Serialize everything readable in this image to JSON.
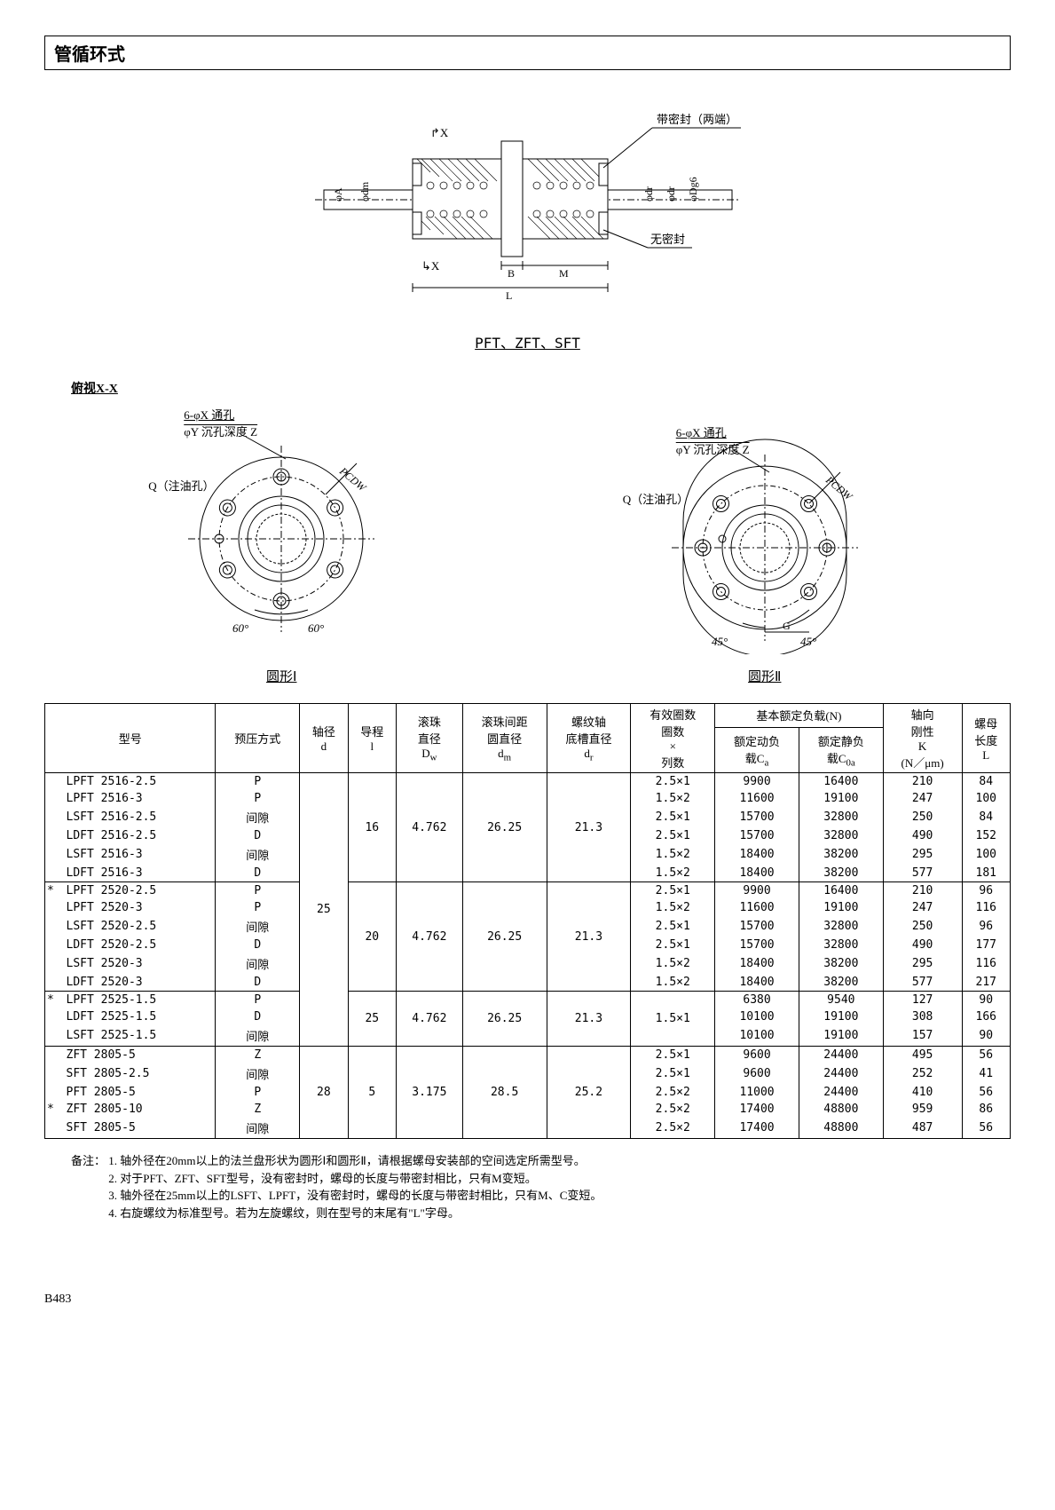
{
  "title": "管循环式",
  "main_diagram": {
    "seal_label": "带密封（两端）",
    "noseal_label": "无密封",
    "dims": [
      "φA",
      "φdm",
      "X",
      "X",
      "B",
      "M",
      "L",
      "φdr",
      "φdr",
      "φDg6"
    ],
    "caption": "PFT、ZFT、SFT"
  },
  "section_xx": "俯视X-X",
  "flange1": {
    "hole_label": "6-φX 通孔",
    "cbore_label": "φY 沉孔深度 Z",
    "oil_label": "Q（注油孔）",
    "pcd_label": "PCDW",
    "angle1": "60°",
    "angle2": "60°",
    "caption": "圆形Ⅰ"
  },
  "flange2": {
    "hole_label": "6-φX 通孔",
    "cbore_label": "φY 沉孔深度 Z",
    "oil_label": "Q（注油孔）",
    "pcd_label": "PCDW",
    "angle1": "45°",
    "angle2": "45°",
    "dim_g": "G",
    "caption": "圆形Ⅱ"
  },
  "table": {
    "headers": {
      "model": "型号",
      "preload": "预压方式",
      "shaft_d": "轴径",
      "shaft_d_sub": "d",
      "lead": "导程",
      "lead_sub": "l",
      "ball_d": "滚珠<br>直径",
      "ball_d_sub": "Dw",
      "pitch_circle": "滚珠间距<br>圆直径",
      "pitch_circle_sub": "dm",
      "root_d": "螺纹轴<br>底槽直径",
      "root_d_sub": "dr",
      "circuits": "有效圈数<br>圈数<br>×<br>列数",
      "load_group": "基本额定负载(N)",
      "dyn_load": "额定动负<br>载Ca",
      "stat_load": "额定静负<br>载C0a",
      "stiffness": "轴向<br>刚性<br>K",
      "stiffness_sub": "(N／μm)",
      "nut_len": "螺母<br>长度",
      "nut_len_sub": "L"
    },
    "groups": [
      {
        "rows": [
          {
            "star": "",
            "model": "LPFT 2516-2.5",
            "preload": "P",
            "circuits": "2.5×1",
            "ca": "9900",
            "c0a": "16400",
            "k": "210",
            "l": "84"
          },
          {
            "star": "",
            "model": "LPFT 2516-3",
            "preload": "P",
            "circuits": "1.5×2",
            "ca": "11600",
            "c0a": "19100",
            "k": "247",
            "l": "100"
          },
          {
            "star": "",
            "model": "LSFT 2516-2.5",
            "preload": "间隙",
            "circuits": "2.5×1",
            "ca": "15700",
            "c0a": "32800",
            "k": "250",
            "l": "84"
          },
          {
            "star": "",
            "model": "LDFT 2516-2.5",
            "preload": "D",
            "circuits": "2.5×1",
            "ca": "15700",
            "c0a": "32800",
            "k": "490",
            "l": "152"
          },
          {
            "star": "",
            "model": "LSFT 2516-3",
            "preload": "间隙",
            "circuits": "1.5×2",
            "ca": "18400",
            "c0a": "38200",
            "k": "295",
            "l": "100"
          },
          {
            "star": "",
            "model": "LDFT 2516-3",
            "preload": "D",
            "circuits": "1.5×2",
            "ca": "18400",
            "c0a": "38200",
            "k": "577",
            "l": "181"
          }
        ],
        "d": "",
        "lead": "16",
        "dw": "4.762",
        "dm": "26.25",
        "dr": "21.3",
        "d_span": true
      },
      {
        "rows": [
          {
            "star": "*",
            "model": "LPFT 2520-2.5",
            "preload": "P",
            "circuits": "2.5×1",
            "ca": "9900",
            "c0a": "16400",
            "k": "210",
            "l": "96"
          },
          {
            "star": "",
            "model": "LPFT 2520-3",
            "preload": "P",
            "circuits": "1.5×2",
            "ca": "11600",
            "c0a": "19100",
            "k": "247",
            "l": "116"
          },
          {
            "star": "",
            "model": "LSFT 2520-2.5",
            "preload": "间隙",
            "circuits": "2.5×1",
            "ca": "15700",
            "c0a": "32800",
            "k": "250",
            "l": "96"
          },
          {
            "star": "",
            "model": "LDFT 2520-2.5",
            "preload": "D",
            "circuits": "2.5×1",
            "ca": "15700",
            "c0a": "32800",
            "k": "490",
            "l": "177"
          },
          {
            "star": "",
            "model": "LSFT 2520-3",
            "preload": "间隙",
            "circuits": "1.5×2",
            "ca": "18400",
            "c0a": "38200",
            "k": "295",
            "l": "116"
          },
          {
            "star": "",
            "model": "LDFT 2520-3",
            "preload": "D",
            "circuits": "1.5×2",
            "ca": "18400",
            "c0a": "38200",
            "k": "577",
            "l": "217"
          }
        ],
        "d": "25",
        "lead": "20",
        "dw": "4.762",
        "dm": "26.25",
        "dr": "21.3"
      },
      {
        "rows": [
          {
            "star": "*",
            "model": "LPFT 2525-1.5",
            "preload": "P",
            "circuits": "",
            "ca": "6380",
            "c0a": "9540",
            "k": "127",
            "l": "90"
          },
          {
            "star": "",
            "model": "LDFT 2525-1.5",
            "preload": "D",
            "circuits": "1.5×1",
            "ca": "10100",
            "c0a": "19100",
            "k": "308",
            "l": "166"
          },
          {
            "star": "",
            "model": "LSFT 2525-1.5",
            "preload": "间隙",
            "circuits": "",
            "ca": "10100",
            "c0a": "19100",
            "k": "157",
            "l": "90"
          }
        ],
        "d": "",
        "lead": "25",
        "dw": "4.762",
        "dm": "26.25",
        "dr": "21.3",
        "circuits_merged": "1.5×1"
      },
      {
        "rows": [
          {
            "star": "",
            "model": "ZFT  2805-5",
            "preload": "Z",
            "circuits": "2.5×1",
            "ca": "9600",
            "c0a": "24400",
            "k": "495",
            "l": "56"
          },
          {
            "star": "",
            "model": "SFT  2805-2.5",
            "preload": "间隙",
            "circuits": "2.5×1",
            "ca": "9600",
            "c0a": "24400",
            "k": "252",
            "l": "41"
          },
          {
            "star": "",
            "model": "PFT  2805-5",
            "preload": "P",
            "circuits": "2.5×2",
            "ca": "11000",
            "c0a": "24400",
            "k": "410",
            "l": "56"
          },
          {
            "star": "*",
            "model": "ZFT  2805-10",
            "preload": "Z",
            "circuits": "2.5×2",
            "ca": "17400",
            "c0a": "48800",
            "k": "959",
            "l": "86"
          },
          {
            "star": "",
            "model": "SFT  2805-5",
            "preload": "间隙",
            "circuits": "2.5×2",
            "ca": "17400",
            "c0a": "48800",
            "k": "487",
            "l": "56"
          }
        ],
        "d": "28",
        "lead": "5",
        "dw": "3.175",
        "dm": "28.5",
        "dr": "25.2"
      }
    ]
  },
  "notes": {
    "label": "备注：",
    "items": [
      "1. 轴外径在20mm以上的法兰盘形状为圆形Ⅰ和圆形Ⅱ，请根据螺母安装部的空间选定所需型号。",
      "2. 对于PFT、ZFT、SFT型号，没有密封时，螺母的长度与带密封相比，只有M变短。",
      "3. 轴外径在25mm以上的LSFT、LPFT，没有密封时，螺母的长度与带密封相比，只有M、C变短。",
      "4. 右旋螺纹为标准型号。若为左旋螺纹，则在型号的末尾有\"L\"字母。"
    ]
  },
  "page": "B483"
}
